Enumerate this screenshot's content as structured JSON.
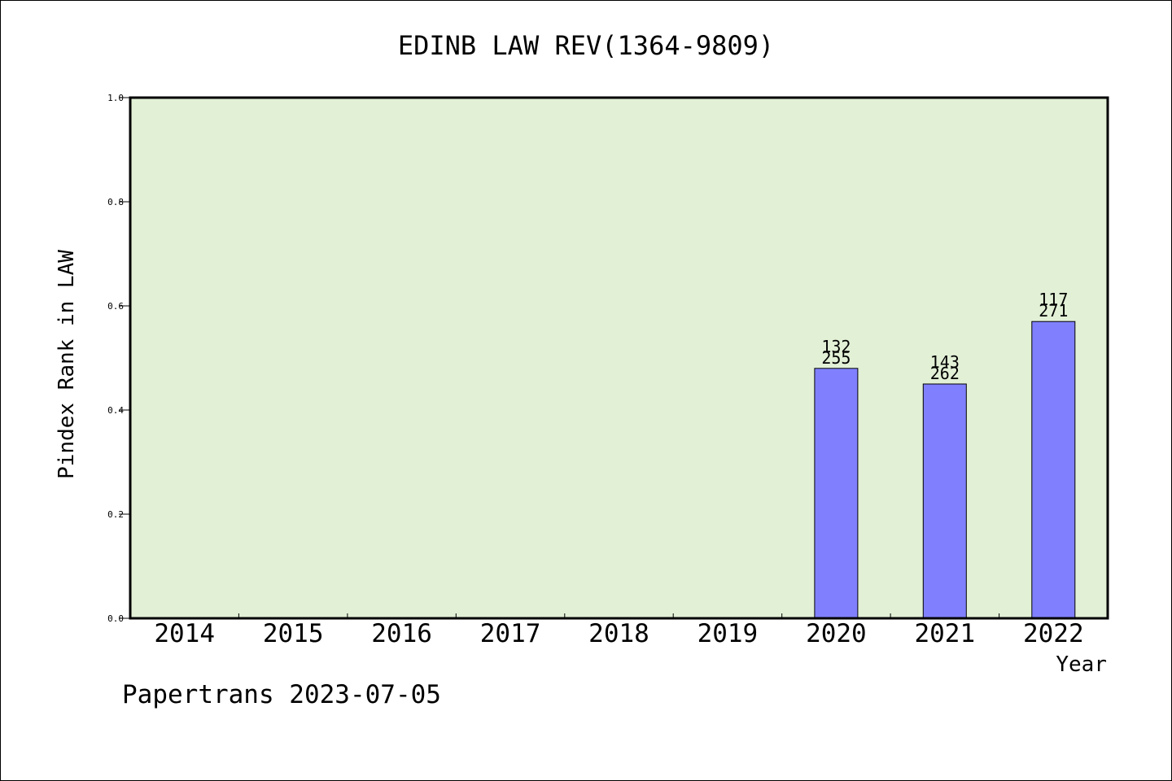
{
  "chart_data": {
    "type": "bar",
    "title": "EDINB LAW REV(1364-9809)",
    "xlabel": "Year",
    "ylabel": "Pindex Rank in LAW",
    "ylim": [
      0,
      1.0
    ],
    "yticks": [
      "0.0",
      "0.2",
      "0.4",
      "0.6",
      "0.8",
      "1.0"
    ],
    "categories": [
      "2014",
      "2015",
      "2016",
      "2017",
      "2018",
      "2019",
      "2020",
      "2021",
      "2022"
    ],
    "values": [
      null,
      null,
      null,
      null,
      null,
      null,
      0.48,
      0.45,
      0.57
    ],
    "bar_labels": [
      [
        "",
        ""
      ],
      [
        "",
        ""
      ],
      [
        "",
        ""
      ],
      [
        "",
        ""
      ],
      [
        "",
        ""
      ],
      [
        "",
        ""
      ],
      [
        "132",
        "255"
      ],
      [
        "143",
        "262"
      ],
      [
        "117",
        "271"
      ]
    ],
    "grid": false,
    "plot_bg": "#e2f0d6",
    "bar_color": "#8080ff",
    "footer": "Papertrans 2023-07-05"
  }
}
